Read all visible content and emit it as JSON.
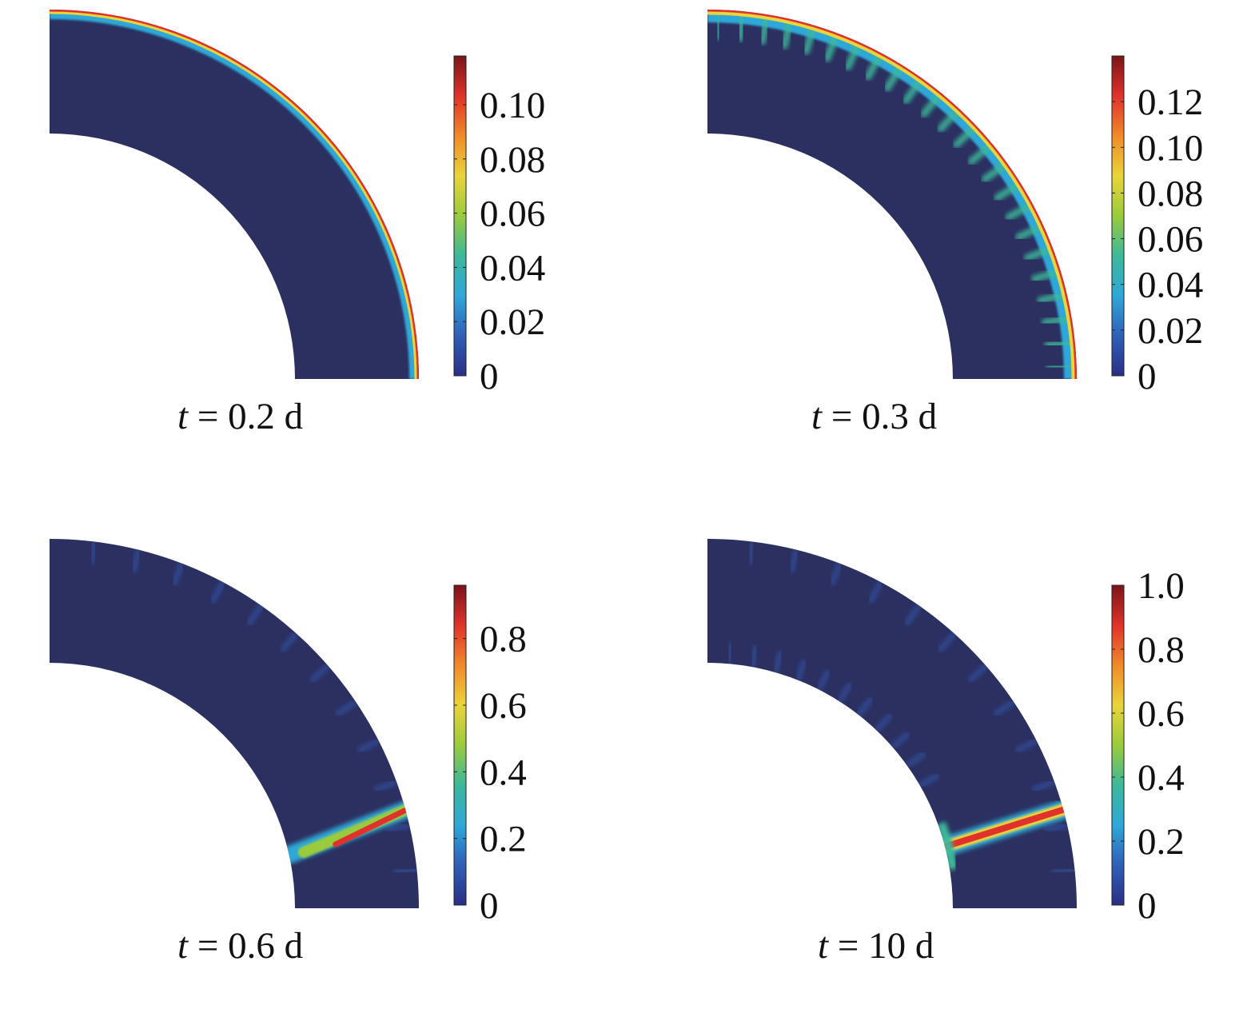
{
  "panels": [
    {
      "caption": {
        "var": "t",
        "rest": " = 0.2 d"
      },
      "colorbar": {
        "ticks": [
          "0.10",
          "0.08",
          "0.06",
          "0.04",
          "0.02",
          "0"
        ],
        "tick_values": [
          0.1,
          0.08,
          0.06,
          0.04,
          0.02,
          0
        ],
        "max": 0.118
      },
      "field": "outer-edge damage band"
    },
    {
      "caption": {
        "var": "t",
        "rest": " = 0.3 d"
      },
      "colorbar": {
        "ticks": [
          "0.12",
          "0.10",
          "0.08",
          "0.06",
          "0.04",
          "0.02",
          "0"
        ],
        "tick_values": [
          0.12,
          0.1,
          0.08,
          0.06,
          0.04,
          0.02,
          0
        ],
        "max": 0.14
      },
      "field": "outer-edge band with periodic notches"
    },
    {
      "caption": {
        "var": "t",
        "rest": " = 0.6 d"
      },
      "colorbar": {
        "ticks": [
          "0.8",
          "0.6",
          "0.4",
          "0.2",
          "0"
        ],
        "tick_values": [
          0.8,
          0.6,
          0.4,
          0.2,
          0
        ],
        "max": 0.96
      },
      "field": "partial radial crack"
    },
    {
      "caption": {
        "var": "t",
        "rest": " = 10 d"
      },
      "colorbar": {
        "ticks": [
          "1.0",
          "0.8",
          "0.6",
          "0.4",
          "0.2",
          "0"
        ],
        "tick_values": [
          1.0,
          0.8,
          0.6,
          0.4,
          0.2,
          0
        ],
        "max": 1.0
      },
      "field": "through-thickness radial crack"
    }
  ],
  "colors": {
    "background_field": "#2b3060",
    "jet": [
      "#2a2f84",
      "#2f5fb8",
      "#2fa8d8",
      "#3cb89a",
      "#9acb3c",
      "#ead43a",
      "#f08a2a",
      "#e0322a",
      "#7a1418"
    ]
  }
}
